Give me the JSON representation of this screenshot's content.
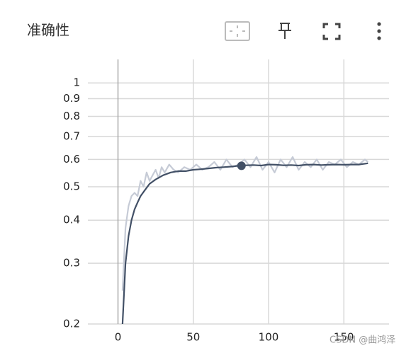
{
  "chart_data": {
    "type": "line",
    "title": "准确性",
    "xlim": [
      -20,
      180
    ],
    "xticks": [
      0,
      50,
      100,
      150
    ],
    "ylim": [
      0.2,
      1.17
    ],
    "yticks": [
      1,
      0.9,
      0.8,
      0.7,
      0.6,
      0.5,
      0.4,
      0.3,
      0.2
    ],
    "log_scale_y": true,
    "grid": true,
    "series": [
      {
        "color": "#c6cbd6",
        "x": [
          3,
          5,
          7,
          9,
          11,
          13,
          15,
          17,
          19,
          21,
          23,
          25,
          27,
          29,
          31,
          34,
          37,
          40,
          44,
          48,
          52,
          56,
          60,
          64,
          68,
          72,
          76,
          80,
          84,
          88,
          92,
          96,
          100,
          104,
          108,
          112,
          116,
          120,
          124,
          128,
          132,
          136,
          140,
          144,
          148,
          152,
          156,
          160,
          164,
          166
        ],
        "values": [
          0.25,
          0.38,
          0.44,
          0.47,
          0.48,
          0.47,
          0.52,
          0.5,
          0.55,
          0.52,
          0.54,
          0.56,
          0.53,
          0.57,
          0.55,
          0.58,
          0.56,
          0.55,
          0.57,
          0.56,
          0.58,
          0.56,
          0.57,
          0.59,
          0.56,
          0.6,
          0.57,
          0.58,
          0.6,
          0.57,
          0.61,
          0.56,
          0.59,
          0.55,
          0.6,
          0.57,
          0.61,
          0.56,
          0.59,
          0.57,
          0.6,
          0.56,
          0.59,
          0.58,
          0.6,
          0.57,
          0.59,
          0.58,
          0.6,
          0.59
        ]
      },
      {
        "color": "#425066",
        "x": [
          3,
          5,
          7,
          9,
          11,
          13,
          15,
          18,
          21,
          25,
          30,
          35,
          40,
          45,
          50,
          55,
          60,
          65,
          70,
          75,
          80,
          85,
          90,
          95,
          100,
          105,
          110,
          115,
          120,
          125,
          130,
          135,
          140,
          145,
          150,
          155,
          160,
          166
        ],
        "values": [
          0.2,
          0.3,
          0.36,
          0.4,
          0.43,
          0.45,
          0.47,
          0.49,
          0.51,
          0.525,
          0.54,
          0.55,
          0.555,
          0.555,
          0.56,
          0.562,
          0.565,
          0.568,
          0.57,
          0.572,
          0.575,
          0.577,
          0.578,
          0.576,
          0.58,
          0.579,
          0.577,
          0.578,
          0.576,
          0.579,
          0.58,
          0.578,
          0.579,
          0.58,
          0.579,
          0.58,
          0.58,
          0.585
        ]
      }
    ],
    "hover_point": {
      "x": 82,
      "y": 0.575
    }
  },
  "watermark": "CSDN @曲鸿泽"
}
